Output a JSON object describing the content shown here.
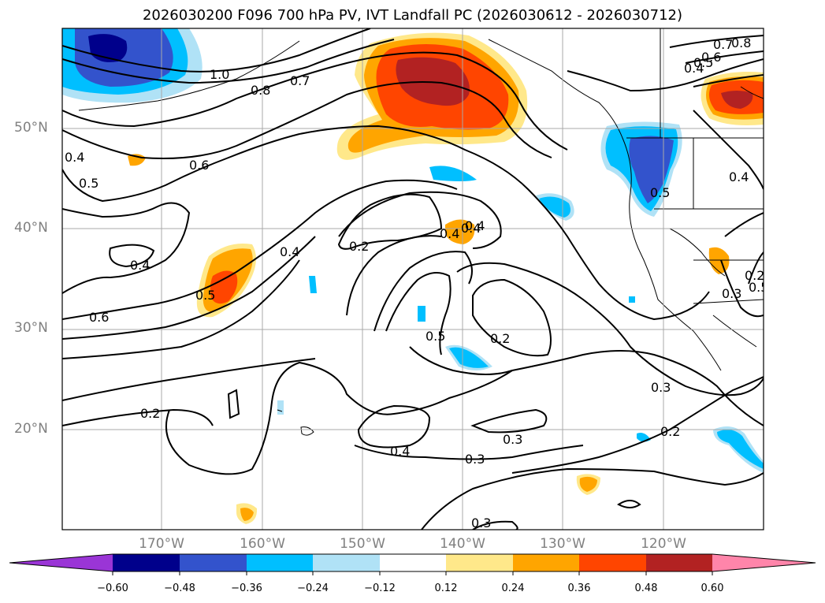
{
  "title": "2026030200 F096 700 hPa PV, IVT Landfall PC (2026030612 - 2026030712)",
  "lat_labels": [
    "50°N",
    "40°N",
    "30°N",
    "20°N"
  ],
  "lon_labels": [
    "170°W",
    "160°W",
    "150°W",
    "140°W",
    "130°W",
    "120°W"
  ],
  "colorbar": {
    "tick_labels": [
      "−0.60",
      "−0.48",
      "−0.36",
      "−0.24",
      "−0.12",
      "0.12",
      "0.24",
      "0.36",
      "0.48",
      "0.60"
    ],
    "colors": [
      "#9a35d6",
      "#00008b",
      "#3353cc",
      "#00bfff",
      "#b0e2f6",
      "#ffffff",
      "#ffe88a",
      "#ffa500",
      "#ff4500",
      "#b22222",
      "#ff85aa"
    ]
  },
  "contour_labels": [
    "1.0",
    "0.8",
    "0.7",
    "0.6",
    "0.5",
    "0.4",
    "0.4",
    "0.4",
    "0.4",
    "0.5",
    "0.6",
    "0.2",
    "0.4",
    "0.4",
    "0.5",
    "0.5",
    "0.2",
    "0.3",
    "0.3",
    "0.2",
    "0.3",
    "0.4",
    "0.3",
    "0.2",
    "0.8",
    "0.7",
    "0.6",
    "0.5",
    "0.4",
    "0.4",
    "0.5",
    "0.3",
    "0.2"
  ]
}
